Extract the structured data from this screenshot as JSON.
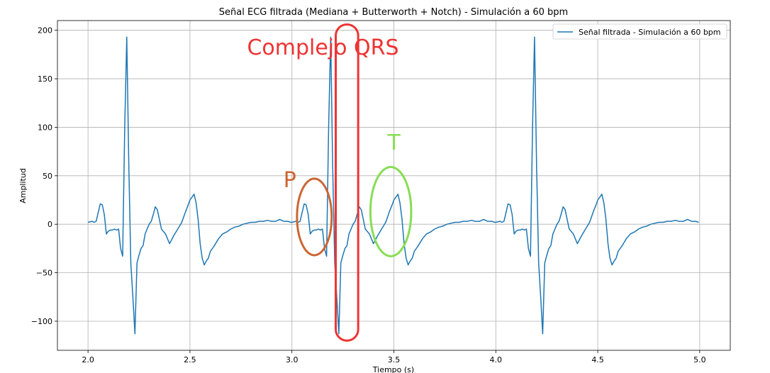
{
  "chart_data": {
    "type": "line",
    "title": "Señal ECG filtrada (Mediana + Butterworth + Notch) - Simulación a 60 bpm",
    "xlabel": "Tiempo (s)",
    "ylabel": "Amplitud",
    "xlim": [
      1.85,
      5.15
    ],
    "ylim": [
      -130,
      210
    ],
    "xticks": [
      2.0,
      2.5,
      3.0,
      3.5,
      4.0,
      4.5,
      5.0
    ],
    "xtick_labels": [
      "2.0",
      "2.5",
      "3.0",
      "3.5",
      "4.0",
      "4.5",
      "5.0"
    ],
    "yticks": [
      -100,
      -50,
      0,
      50,
      100,
      150,
      200
    ],
    "ytick_labels": [
      "−100",
      "−50",
      "0",
      "50",
      "100",
      "150",
      "200"
    ],
    "grid": true,
    "legend_position": "top-right",
    "line_color": "#1f77b4",
    "series": [
      {
        "name": "Señal filtrada - Simulación a 60 bpm",
        "beat_start_times": [
          2.0,
          3.0,
          4.0
        ],
        "beat_template": {
          "t_offset": [
            0.0,
            0.02,
            0.03,
            0.04,
            0.05,
            0.06,
            0.07,
            0.08,
            0.09,
            0.1,
            0.11,
            0.12,
            0.13,
            0.14,
            0.15,
            0.16,
            0.17,
            0.18,
            0.19,
            0.2,
            0.21,
            0.22,
            0.23,
            0.24,
            0.25,
            0.26,
            0.27,
            0.28,
            0.29,
            0.3,
            0.31,
            0.32,
            0.33,
            0.34,
            0.35,
            0.36,
            0.38,
            0.4,
            0.42,
            0.44,
            0.46,
            0.48,
            0.49,
            0.5,
            0.51,
            0.52,
            0.53,
            0.54,
            0.55,
            0.56,
            0.57,
            0.58,
            0.59,
            0.6,
            0.62,
            0.64,
            0.66,
            0.68,
            0.7,
            0.72,
            0.74,
            0.76,
            0.78,
            0.8,
            0.82,
            0.84,
            0.86,
            0.88,
            0.9,
            0.92,
            0.94,
            0.96,
            0.98,
            0.995
          ],
          "amplitude": [
            2,
            3,
            2,
            3,
            12,
            21,
            20,
            10,
            -10,
            -7,
            -6,
            -6,
            -5,
            -6,
            -5,
            -25,
            -33,
            100,
            193,
            60,
            -40,
            -75,
            -113,
            -40,
            -32,
            -25,
            -22,
            -10,
            -5,
            0,
            3,
            10,
            18,
            15,
            5,
            -5,
            -10,
            -20,
            -12,
            -5,
            2,
            14,
            19,
            25,
            28,
            31,
            22,
            5,
            -20,
            -35,
            -42,
            -38,
            -35,
            -28,
            -22,
            -15,
            -10,
            -8,
            -5,
            -3,
            -2,
            0,
            1,
            2,
            2,
            3,
            3,
            4,
            3,
            3,
            5,
            3,
            3,
            2
          ]
        }
      }
    ],
    "annotations": [
      {
        "text": "Complejo QRS",
        "color": "#ee3333",
        "x": 2.78,
        "y": 175
      },
      {
        "text": "P",
        "color": "#cc6633",
        "x": 2.99,
        "y": 38
      },
      {
        "text": "T",
        "color": "#88dd55",
        "x": 3.5,
        "y": 77
      }
    ],
    "highlight_shapes": [
      {
        "label": "QRS",
        "color": "#ee3333",
        "x_range": [
          3.215,
          3.325
        ],
        "y_range": [
          -120,
          206
        ]
      },
      {
        "label": "P",
        "color": "#cc6633",
        "x_range": [
          3.025,
          3.195
        ],
        "y_range": [
          -32,
          47
        ]
      },
      {
        "label": "T",
        "color": "#88dd55",
        "x_range": [
          3.385,
          3.585
        ],
        "y_range": [
          -33,
          59
        ]
      }
    ]
  }
}
